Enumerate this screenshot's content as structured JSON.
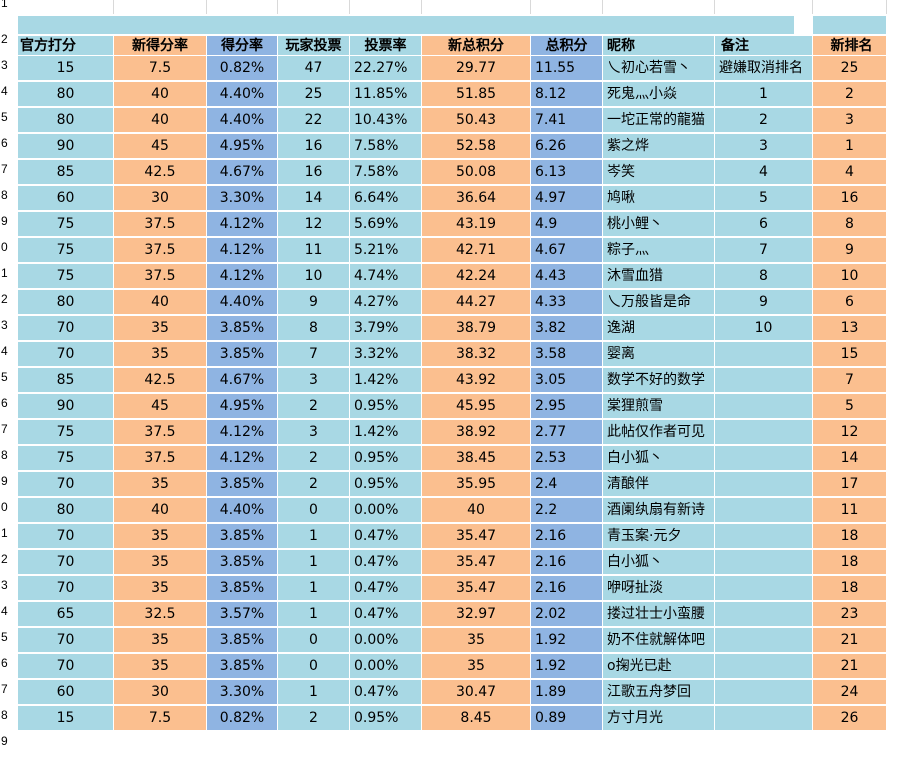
{
  "row_numbers": [
    "1",
    "2",
    "3",
    "4",
    "5",
    "6",
    "7",
    "8",
    "9",
    "0",
    "1",
    "2",
    "3",
    "4",
    "5",
    "6",
    "7",
    "8",
    "9",
    "0",
    "1",
    "2",
    "3",
    "4",
    "5",
    "6",
    "7",
    "8",
    "9"
  ],
  "headers": {
    "official": "官方打分",
    "new_rate": "新得分率",
    "rate": "得分率",
    "votes": "玩家投票",
    "vote_rate": "投票率",
    "new_total": "新总积分",
    "total": "总积分",
    "nickname": "昵称",
    "note": "备注",
    "new_rank": "新排名"
  },
  "rows": [
    {
      "official": "15",
      "new_rate": "7.5",
      "rate": "0.82%",
      "votes": "47",
      "vote_rate": "22.27%",
      "new_total": "29.77",
      "total": "11.55",
      "nickname": "乀初心若雪丶",
      "note": "避嫌取消排名",
      "new_rank": "25"
    },
    {
      "official": "80",
      "new_rate": "40",
      "rate": "4.40%",
      "votes": "25",
      "vote_rate": "11.85%",
      "new_total": "51.85",
      "total": "8.12",
      "nickname": "死鬼灬小焱",
      "note": "1",
      "new_rank": "2"
    },
    {
      "official": "80",
      "new_rate": "40",
      "rate": "4.40%",
      "votes": "22",
      "vote_rate": "10.43%",
      "new_total": "50.43",
      "total": "7.41",
      "nickname": "一坨正常的龍猫",
      "note": "2",
      "new_rank": "3"
    },
    {
      "official": "90",
      "new_rate": "45",
      "rate": "4.95%",
      "votes": "16",
      "vote_rate": "7.58%",
      "new_total": "52.58",
      "total": "6.26",
      "nickname": "紫之烨",
      "note": "3",
      "new_rank": "1"
    },
    {
      "official": "85",
      "new_rate": "42.5",
      "rate": "4.67%",
      "votes": "16",
      "vote_rate": "7.58%",
      "new_total": "50.08",
      "total": "6.13",
      "nickname": "岑笑",
      "note": "4",
      "new_rank": "4"
    },
    {
      "official": "60",
      "new_rate": "30",
      "rate": "3.30%",
      "votes": "14",
      "vote_rate": "6.64%",
      "new_total": "36.64",
      "total": "4.97",
      "nickname": "鸠啾",
      "note": "5",
      "new_rank": "16"
    },
    {
      "official": "75",
      "new_rate": "37.5",
      "rate": "4.12%",
      "votes": "12",
      "vote_rate": "5.69%",
      "new_total": "43.19",
      "total": "4.9",
      "nickname": "桃小鲤丶",
      "note": "6",
      "new_rank": "8"
    },
    {
      "official": "75",
      "new_rate": "37.5",
      "rate": "4.12%",
      "votes": "11",
      "vote_rate": "5.21%",
      "new_total": "42.71",
      "total": "4.67",
      "nickname": "粽子灬",
      "note": "7",
      "new_rank": "9"
    },
    {
      "official": "75",
      "new_rate": "37.5",
      "rate": "4.12%",
      "votes": "10",
      "vote_rate": "4.74%",
      "new_total": "42.24",
      "total": "4.43",
      "nickname": "沐雪血猎",
      "note": "8",
      "new_rank": "10"
    },
    {
      "official": "80",
      "new_rate": "40",
      "rate": "4.40%",
      "votes": "9",
      "vote_rate": "4.27%",
      "new_total": "44.27",
      "total": "4.33",
      "nickname": "乀万般皆是命",
      "note": "9",
      "new_rank": "6"
    },
    {
      "official": "70",
      "new_rate": "35",
      "rate": "3.85%",
      "votes": "8",
      "vote_rate": "3.79%",
      "new_total": "38.79",
      "total": "3.82",
      "nickname": "逸湖",
      "note": "10",
      "new_rank": "13"
    },
    {
      "official": "70",
      "new_rate": "35",
      "rate": "3.85%",
      "votes": "7",
      "vote_rate": "3.32%",
      "new_total": "38.32",
      "total": "3.58",
      "nickname": "婴离",
      "note": "",
      "new_rank": "15"
    },
    {
      "official": "85",
      "new_rate": "42.5",
      "rate": "4.67%",
      "votes": "3",
      "vote_rate": "1.42%",
      "new_total": "43.92",
      "total": "3.05",
      "nickname": "数学不好的数学",
      "note": "",
      "new_rank": "7"
    },
    {
      "official": "90",
      "new_rate": "45",
      "rate": "4.95%",
      "votes": "2",
      "vote_rate": "0.95%",
      "new_total": "45.95",
      "total": "2.95",
      "nickname": "棠狸煎雪",
      "note": "",
      "new_rank": "5"
    },
    {
      "official": "75",
      "new_rate": "37.5",
      "rate": "4.12%",
      "votes": "3",
      "vote_rate": "1.42%",
      "new_total": "38.92",
      "total": "2.77",
      "nickname": "此帖仅作者可见",
      "note": "",
      "new_rank": "12"
    },
    {
      "official": "75",
      "new_rate": "37.5",
      "rate": "4.12%",
      "votes": "2",
      "vote_rate": "0.95%",
      "new_total": "38.45",
      "total": "2.53",
      "nickname": "白小狐丶",
      "note": "",
      "new_rank": "14"
    },
    {
      "official": "70",
      "new_rate": "35",
      "rate": "3.85%",
      "votes": "2",
      "vote_rate": "0.95%",
      "new_total": "35.95",
      "total": "2.4",
      "nickname": "清酿伴",
      "note": "",
      "new_rank": "17"
    },
    {
      "official": "80",
      "new_rate": "40",
      "rate": "4.40%",
      "votes": "0",
      "vote_rate": "0.00%",
      "new_total": "40",
      "total": "2.2",
      "nickname": "酒阑纨扇有新诗",
      "note": "",
      "new_rank": "11"
    },
    {
      "official": "70",
      "new_rate": "35",
      "rate": "3.85%",
      "votes": "1",
      "vote_rate": "0.47%",
      "new_total": "35.47",
      "total": "2.16",
      "nickname": "青玉案·元夕",
      "note": "",
      "new_rank": "18"
    },
    {
      "official": "70",
      "new_rate": "35",
      "rate": "3.85%",
      "votes": "1",
      "vote_rate": "0.47%",
      "new_total": "35.47",
      "total": "2.16",
      "nickname": "白小狐丶",
      "note": "",
      "new_rank": "18"
    },
    {
      "official": "70",
      "new_rate": "35",
      "rate": "3.85%",
      "votes": "1",
      "vote_rate": "0.47%",
      "new_total": "35.47",
      "total": "2.16",
      "nickname": "咿呀扯淡",
      "note": "",
      "new_rank": "18"
    },
    {
      "official": "65",
      "new_rate": "32.5",
      "rate": "3.57%",
      "votes": "1",
      "vote_rate": "0.47%",
      "new_total": "32.97",
      "total": "2.02",
      "nickname": "搂过壮士小蛮腰",
      "note": "",
      "new_rank": "23"
    },
    {
      "official": "70",
      "new_rate": "35",
      "rate": "3.85%",
      "votes": "0",
      "vote_rate": "0.00%",
      "new_total": "35",
      "total": "1.92",
      "nickname": "奶不住就解体吧",
      "note": "",
      "new_rank": "21"
    },
    {
      "official": "70",
      "new_rate": "35",
      "rate": "3.85%",
      "votes": "0",
      "vote_rate": "0.00%",
      "new_total": "35",
      "total": "1.92",
      "nickname": "o掬光已赴",
      "note": "",
      "new_rank": "21"
    },
    {
      "official": "60",
      "new_rate": "30",
      "rate": "3.30%",
      "votes": "1",
      "vote_rate": "0.47%",
      "new_total": "30.47",
      "total": "1.89",
      "nickname": "江歌五舟梦回",
      "note": "",
      "new_rank": "24"
    },
    {
      "official": "15",
      "new_rate": "7.5",
      "rate": "0.82%",
      "votes": "2",
      "vote_rate": "0.95%",
      "new_total": "8.45",
      "total": "0.89",
      "nickname": "方寸月光",
      "note": "",
      "new_rank": "26"
    }
  ],
  "colors": {
    "light_blue": "#a8d8e4",
    "orange": "#fbbf8f",
    "dark_blue": "#8fb4e2"
  }
}
